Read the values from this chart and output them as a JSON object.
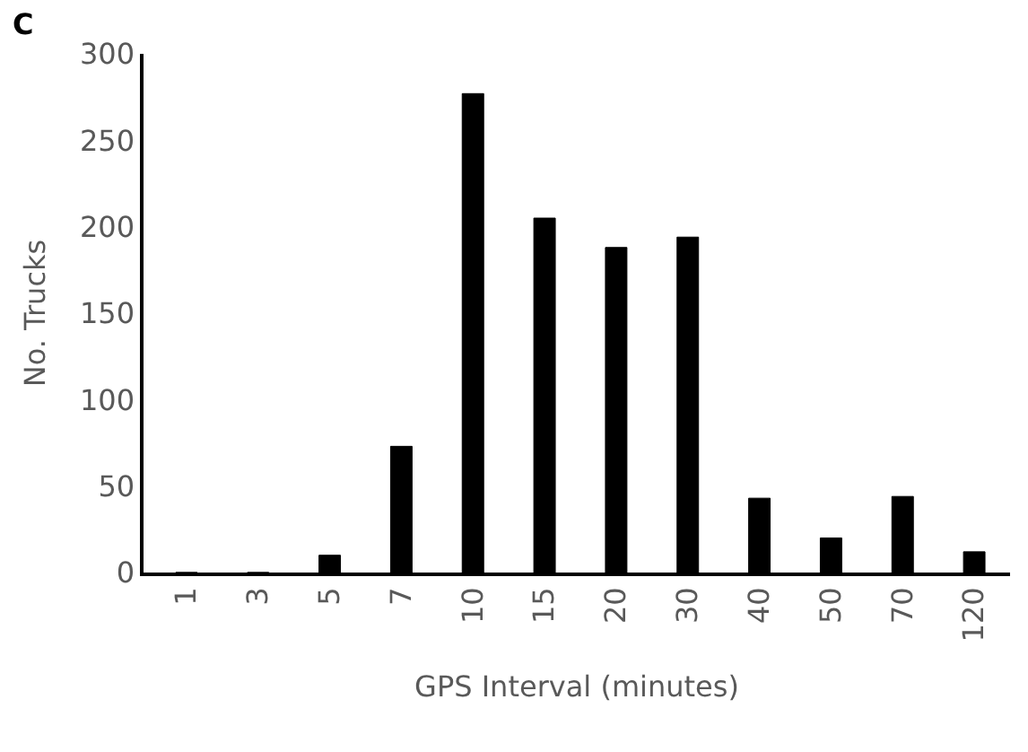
{
  "chart_data": {
    "type": "bar",
    "annotations": [
      "C"
    ],
    "xlabel": "GPS Interval (minutes)",
    "ylabel": "No. Trucks",
    "categories": [
      "1",
      "3",
      "5",
      "7",
      "10",
      "15",
      "20",
      "30",
      "40",
      "50",
      "70",
      "120"
    ],
    "values": [
      0,
      0,
      10,
      73,
      277,
      205,
      188,
      194,
      43,
      20,
      44,
      12
    ],
    "color": "#000000",
    "ylim": [
      0,
      300
    ],
    "yticks": [
      0,
      50,
      100,
      150,
      200,
      250,
      300
    ],
    "legend": false
  }
}
